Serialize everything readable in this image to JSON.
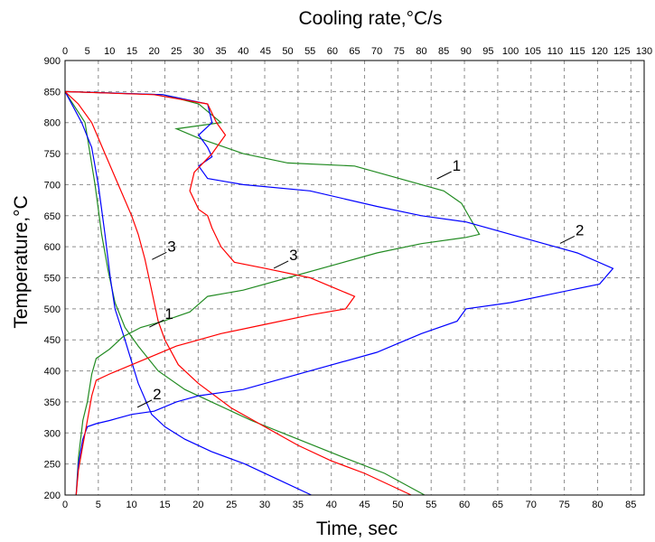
{
  "chart_data": {
    "type": "line",
    "title": "Cooling rate,°C/s",
    "xlabel": "Time, sec",
    "ylabel": "Temperature,°C",
    "xlim": [
      0,
      87
    ],
    "ylim": [
      200,
      900
    ],
    "x2lim": [
      0,
      130
    ],
    "grid": true,
    "x_ticks": [
      0,
      5,
      10,
      15,
      20,
      25,
      30,
      35,
      40,
      45,
      50,
      55,
      60,
      65,
      70,
      75,
      80,
      85
    ],
    "y_ticks": [
      200,
      250,
      300,
      350,
      400,
      450,
      500,
      550,
      600,
      650,
      700,
      750,
      800,
      850,
      900
    ],
    "x2_ticks": [
      0,
      5,
      10,
      15,
      20,
      25,
      30,
      35,
      40,
      45,
      50,
      55,
      60,
      65,
      70,
      75,
      80,
      85,
      90,
      95,
      100,
      105,
      110,
      115,
      120,
      125,
      130
    ],
    "series": [
      {
        "color": "#228b22",
        "axis": "time",
        "points": [
          [
            0,
            850
          ],
          [
            3,
            800
          ],
          [
            4.5,
            700
          ],
          [
            5.5,
            620
          ],
          [
            6.5,
            560
          ],
          [
            7.5,
            510
          ],
          [
            9,
            470
          ],
          [
            11,
            440
          ],
          [
            14,
            400
          ],
          [
            18,
            370
          ],
          [
            22,
            350
          ],
          [
            28,
            320
          ],
          [
            35,
            290
          ],
          [
            42,
            260
          ],
          [
            48,
            235
          ],
          [
            54,
            200
          ]
        ]
      },
      {
        "color": "#0000ff",
        "axis": "time",
        "points": [
          [
            0,
            850
          ],
          [
            2.5,
            800
          ],
          [
            4,
            760
          ],
          [
            5,
            700
          ],
          [
            6,
            620
          ],
          [
            6.8,
            550
          ],
          [
            7.5,
            500
          ],
          [
            9,
            450
          ],
          [
            11,
            380
          ],
          [
            13,
            330
          ],
          [
            15,
            310
          ],
          [
            18,
            290
          ],
          [
            22,
            270
          ],
          [
            27,
            250
          ],
          [
            32,
            225
          ],
          [
            37,
            200
          ]
        ]
      },
      {
        "color": "#ff0000",
        "axis": "time",
        "points": [
          [
            0,
            850
          ],
          [
            2,
            830
          ],
          [
            4,
            800
          ],
          [
            6,
            750
          ],
          [
            8,
            700
          ],
          [
            10,
            650
          ],
          [
            11,
            620
          ],
          [
            12,
            580
          ],
          [
            13,
            530
          ],
          [
            14,
            480
          ],
          [
            15,
            450
          ],
          [
            17,
            410
          ],
          [
            20,
            380
          ],
          [
            25,
            340
          ],
          [
            30,
            310
          ],
          [
            35,
            280
          ],
          [
            40,
            255
          ],
          [
            45,
            235
          ],
          [
            52,
            200
          ]
        ]
      },
      {
        "color": "#228b22",
        "axis": "rate",
        "points": [
          [
            2.5,
            200
          ],
          [
            3,
            260
          ],
          [
            4,
            320
          ],
          [
            5,
            350
          ],
          [
            6,
            395
          ],
          [
            7,
            420
          ],
          [
            10,
            435
          ],
          [
            13,
            455
          ],
          [
            17,
            470
          ],
          [
            22,
            480
          ],
          [
            28,
            495
          ],
          [
            32,
            520
          ],
          [
            40,
            530
          ],
          [
            50,
            550
          ],
          [
            60,
            570
          ],
          [
            70,
            590
          ],
          [
            80,
            605
          ],
          [
            90,
            615
          ],
          [
            93,
            620
          ],
          [
            89,
            670
          ],
          [
            85,
            690
          ],
          [
            75,
            710
          ],
          [
            65,
            730
          ],
          [
            50,
            735
          ],
          [
            40,
            750
          ],
          [
            30,
            775
          ],
          [
            25,
            790
          ],
          [
            35,
            800
          ],
          [
            30,
            830
          ],
          [
            22,
            845
          ],
          [
            0,
            850
          ]
        ]
      },
      {
        "color": "#0000ff",
        "axis": "rate",
        "points": [
          [
            2.5,
            200
          ],
          [
            3,
            250
          ],
          [
            4,
            290
          ],
          [
            5,
            310
          ],
          [
            7,
            315
          ],
          [
            10,
            320
          ],
          [
            15,
            330
          ],
          [
            20,
            335
          ],
          [
            25,
            350
          ],
          [
            30,
            360
          ],
          [
            40,
            370
          ],
          [
            45,
            380
          ],
          [
            55,
            400
          ],
          [
            70,
            430
          ],
          [
            80,
            460
          ],
          [
            88,
            480
          ],
          [
            90,
            500
          ],
          [
            100,
            510
          ],
          [
            110,
            525
          ],
          [
            120,
            540
          ],
          [
            123,
            565
          ],
          [
            115,
            590
          ],
          [
            100,
            620
          ],
          [
            90,
            640
          ],
          [
            80,
            650
          ],
          [
            70,
            665
          ],
          [
            55,
            690
          ],
          [
            40,
            700
          ],
          [
            32,
            710
          ],
          [
            30,
            730
          ],
          [
            33,
            745
          ],
          [
            32,
            760
          ],
          [
            30,
            780
          ],
          [
            33,
            800
          ],
          [
            32,
            830
          ],
          [
            22,
            845
          ],
          [
            0,
            850
          ]
        ]
      },
      {
        "color": "#ff0000",
        "axis": "rate",
        "points": [
          [
            2.5,
            200
          ],
          [
            3,
            240
          ],
          [
            4,
            280
          ],
          [
            5,
            320
          ],
          [
            6,
            360
          ],
          [
            7,
            385
          ],
          [
            10,
            395
          ],
          [
            15,
            410
          ],
          [
            20,
            425
          ],
          [
            25,
            440
          ],
          [
            35,
            460
          ],
          [
            45,
            475
          ],
          [
            55,
            490
          ],
          [
            63,
            500
          ],
          [
            65,
            520
          ],
          [
            60,
            535
          ],
          [
            55,
            550
          ],
          [
            45,
            565
          ],
          [
            38,
            575
          ],
          [
            35,
            600
          ],
          [
            33,
            630
          ],
          [
            32,
            650
          ],
          [
            30,
            660
          ],
          [
            28,
            690
          ],
          [
            29,
            720
          ],
          [
            33,
            750
          ],
          [
            36,
            780
          ],
          [
            34,
            800
          ],
          [
            32,
            830
          ],
          [
            20,
            845
          ],
          [
            0,
            850
          ]
        ]
      }
    ],
    "annotations": [
      {
        "label": "1",
        "x": 57.5,
        "y": 721
      },
      {
        "label": "2",
        "x": 76,
        "y": 617
      },
      {
        "label": "3",
        "x": 33,
        "y": 577
      },
      {
        "label": "3",
        "x": 14.7,
        "y": 591
      },
      {
        "label": "1",
        "x": 14.3,
        "y": 482
      },
      {
        "label": "2",
        "x": 12.5,
        "y": 353
      }
    ]
  }
}
